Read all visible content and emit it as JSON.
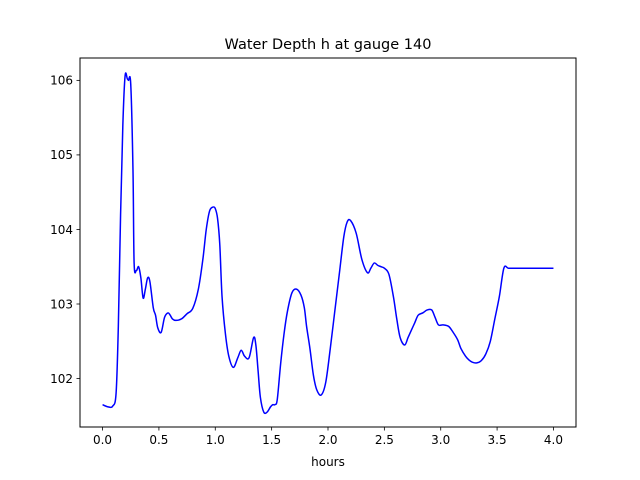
{
  "chart_data": {
    "type": "line",
    "title": "Water Depth h at gauge 140",
    "xlabel": "hours",
    "ylabel": "",
    "xlim": [
      -0.2,
      4.2
    ],
    "ylim": [
      101.35,
      106.3
    ],
    "x_ticks": [
      "0.0",
      "0.5",
      "1.0",
      "1.5",
      "2.0",
      "2.5",
      "3.0",
      "3.5",
      "4.0"
    ],
    "y_ticks": [
      "102",
      "103",
      "104",
      "105",
      "106"
    ],
    "grid": false,
    "line_color": "#0000ff",
    "series": [
      {
        "x": [
          0.0,
          0.05,
          0.09,
          0.12,
          0.14,
          0.16,
          0.18,
          0.2,
          0.22,
          0.23,
          0.25,
          0.27,
          0.28,
          0.3,
          0.32,
          0.34,
          0.36,
          0.38,
          0.4,
          0.42,
          0.45,
          0.47,
          0.49,
          0.52,
          0.55,
          0.58,
          0.6,
          0.62,
          0.65,
          0.7,
          0.75,
          0.8,
          0.85,
          0.89,
          0.92,
          0.95,
          0.98,
          1.0,
          1.02,
          1.04,
          1.06,
          1.09,
          1.12,
          1.16,
          1.2,
          1.23,
          1.26,
          1.3,
          1.34,
          1.36,
          1.38,
          1.4,
          1.43,
          1.46,
          1.49,
          1.51,
          1.53,
          1.55,
          1.58,
          1.61,
          1.64,
          1.68,
          1.72,
          1.76,
          1.79,
          1.81,
          1.84,
          1.87,
          1.9,
          1.94,
          1.98,
          2.02,
          2.06,
          2.1,
          2.14,
          2.17,
          2.2,
          2.25,
          2.3,
          2.35,
          2.38,
          2.41,
          2.44,
          2.47,
          2.5,
          2.54,
          2.58,
          2.61,
          2.64,
          2.68,
          2.71,
          2.74,
          2.77,
          2.8,
          2.84,
          2.88,
          2.92,
          2.95,
          2.98,
          3.02,
          3.07,
          3.11,
          3.15,
          3.18,
          3.22,
          3.25,
          3.28,
          3.32,
          3.36,
          3.4,
          3.44,
          3.48,
          3.52,
          3.56,
          3.6,
          3.65,
          3.7,
          3.74,
          3.78,
          3.82,
          3.86,
          3.9,
          3.94,
          3.98,
          4.0
        ],
        "y": [
          101.65,
          101.62,
          101.63,
          101.8,
          102.7,
          104.2,
          105.4,
          106.06,
          106.02,
          106.0,
          105.95,
          104.8,
          103.55,
          103.45,
          103.5,
          103.35,
          103.08,
          103.2,
          103.35,
          103.3,
          102.95,
          102.85,
          102.68,
          102.62,
          102.82,
          102.88,
          102.85,
          102.8,
          102.78,
          102.8,
          102.87,
          102.94,
          103.2,
          103.6,
          104.0,
          104.25,
          104.3,
          104.28,
          104.15,
          103.8,
          103.1,
          102.6,
          102.3,
          102.15,
          102.28,
          102.38,
          102.3,
          102.28,
          102.55,
          102.45,
          102.1,
          101.75,
          101.55,
          101.55,
          101.62,
          101.65,
          101.65,
          101.72,
          102.2,
          102.6,
          102.9,
          103.15,
          103.2,
          103.12,
          102.95,
          102.7,
          102.4,
          102.05,
          101.85,
          101.78,
          101.95,
          102.4,
          102.9,
          103.4,
          103.9,
          104.1,
          104.12,
          103.95,
          103.6,
          103.42,
          103.48,
          103.55,
          103.52,
          103.5,
          103.48,
          103.4,
          103.1,
          102.8,
          102.55,
          102.45,
          102.55,
          102.65,
          102.75,
          102.85,
          102.88,
          102.92,
          102.92,
          102.82,
          102.72,
          102.72,
          102.7,
          102.62,
          102.52,
          102.4,
          102.3,
          102.25,
          102.22,
          102.21,
          102.24,
          102.33,
          102.5,
          102.8,
          103.1,
          103.48,
          103.48,
          103.48,
          103.48,
          103.48,
          103.48,
          103.48,
          103.48,
          103.48,
          103.48,
          103.48,
          103.48
        ]
      }
    ]
  }
}
